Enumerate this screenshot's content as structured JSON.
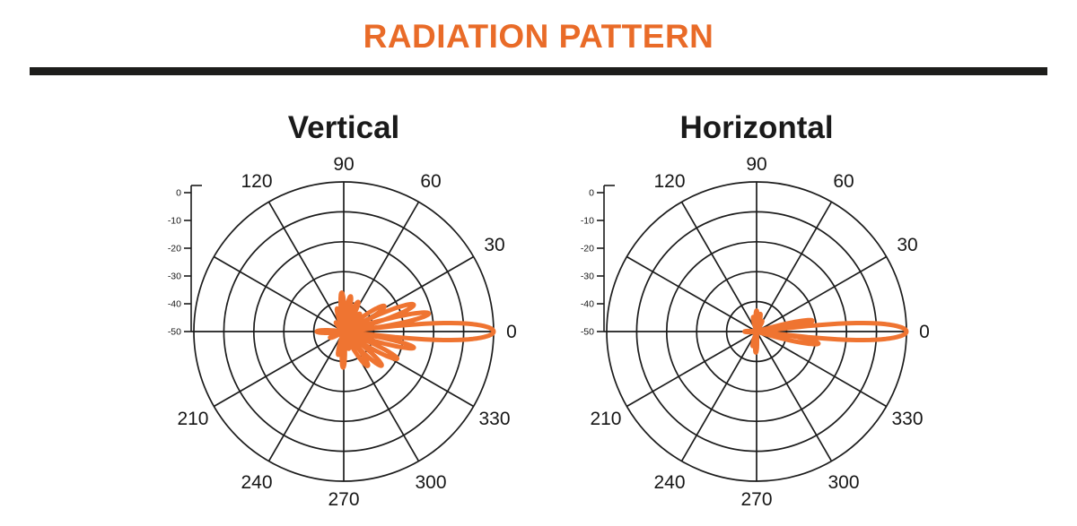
{
  "header": {
    "title": "RADIATION PATTERN"
  },
  "colors": {
    "accent_orange": "#e96b28",
    "pattern_orange": "#ef7431",
    "grid_black": "#1c1c1c",
    "rule_black": "#1d1d1b",
    "label_black": "#161616"
  },
  "chart_data": [
    {
      "type": "line",
      "coordinate_system": "polar",
      "title": "Vertical",
      "angle_unit": "degrees",
      "angle_labels_deg": [
        0,
        30,
        60,
        90,
        120,
        210,
        240,
        270,
        300,
        330
      ],
      "radial_ticks_db": [
        0,
        -10,
        -20,
        -30,
        -40,
        -50
      ],
      "radial_range_db": [
        -50,
        0
      ],
      "grid": true,
      "series": [
        {
          "name": "vertical-gain-pattern",
          "lobes": [
            {
              "angle_deg": 0,
              "peak_db": 0,
              "half_width_deg": 6.5,
              "shape": "rounded"
            },
            {
              "angle_deg": 12,
              "peak_db": -21,
              "half_width_deg": 6.5
            },
            {
              "angle_deg": 21,
              "peak_db": -25,
              "half_width_deg": 7.5
            },
            {
              "angle_deg": 32,
              "peak_db": -34,
              "half_width_deg": 9
            },
            {
              "angle_deg": 48,
              "peak_db": -42,
              "half_width_deg": 9
            },
            {
              "angle_deg": 64,
              "peak_db": -39,
              "half_width_deg": 8
            },
            {
              "angle_deg": 79,
              "peak_db": -38,
              "half_width_deg": 7
            },
            {
              "angle_deg": 93,
              "peak_db": -37,
              "half_width_deg": 7
            },
            {
              "angle_deg": 106,
              "peak_db": -42,
              "half_width_deg": 8
            },
            {
              "angle_deg": 131,
              "peak_db": -46,
              "half_width_deg": 9
            },
            {
              "angle_deg": 180,
              "peak_db": -41,
              "half_width_deg": 8
            },
            {
              "angle_deg": 204,
              "peak_db": -45,
              "half_width_deg": 9
            },
            {
              "angle_deg": 257,
              "peak_db": -42,
              "half_width_deg": 8
            },
            {
              "angle_deg": 269,
              "peak_db": -38,
              "half_width_deg": 7
            },
            {
              "angle_deg": 286,
              "peak_db": -44,
              "half_width_deg": 7
            },
            {
              "angle_deg": 305,
              "peak_db": -36,
              "half_width_deg": 9
            },
            {
              "angle_deg": 318,
              "peak_db": -33,
              "half_width_deg": 8
            },
            {
              "angle_deg": 333,
              "peak_db": -30,
              "half_width_deg": 7
            },
            {
              "angle_deg": 347,
              "peak_db": -26,
              "half_width_deg": 6
            }
          ]
        }
      ]
    },
    {
      "type": "line",
      "coordinate_system": "polar",
      "title": "Horizontal",
      "angle_unit": "degrees",
      "angle_labels_deg": [
        0,
        30,
        60,
        90,
        120,
        210,
        240,
        270,
        300,
        330
      ],
      "radial_ticks_db": [
        0,
        -10,
        -20,
        -30,
        -40,
        -50
      ],
      "radial_range_db": [
        -50,
        0
      ],
      "grid": true,
      "series": [
        {
          "name": "horizontal-gain-pattern",
          "lobes": [
            {
              "angle_deg": 0,
              "peak_db": 0,
              "half_width_deg": 6.5,
              "shape": "rounded"
            },
            {
              "angle_deg": 11,
              "peak_db": -31,
              "half_width_deg": 6
            },
            {
              "angle_deg": 349,
              "peak_db": -29,
              "half_width_deg": 6
            },
            {
              "angle_deg": 62,
              "peak_db": -46,
              "half_width_deg": 7
            },
            {
              "angle_deg": 78,
              "peak_db": -44,
              "half_width_deg": 7
            },
            {
              "angle_deg": 90,
              "peak_db": -43,
              "half_width_deg": 7
            },
            {
              "angle_deg": 103,
              "peak_db": -45,
              "half_width_deg": 7
            },
            {
              "angle_deg": 180,
              "peak_db": -46,
              "half_width_deg": 7
            },
            {
              "angle_deg": 255,
              "peak_db": -45,
              "half_width_deg": 7
            },
            {
              "angle_deg": 268,
              "peak_db": -43,
              "half_width_deg": 7
            }
          ]
        }
      ]
    }
  ]
}
